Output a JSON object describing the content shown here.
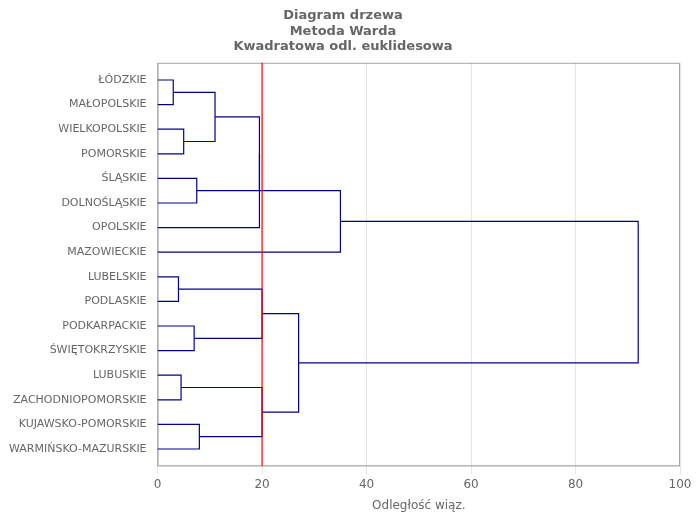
{
  "chart_data": {
    "type": "dendrogram",
    "title": "Diagram drzewa\nMetoda Warda\nKwadratowa odl. euklidesowa",
    "xlabel": "Odległość wiąz.",
    "color": "#00008B",
    "grid": "x",
    "xlim": [
      0,
      100
    ],
    "xticks": [
      0,
      20,
      40,
      60,
      80,
      100
    ],
    "ylim": [
      16.7,
      0.3
    ],
    "yticks": [
      {
        "value": 1,
        "label": "ŁÓDZKIE"
      },
      {
        "value": 2,
        "label": "MAŁOPOLSKIE"
      },
      {
        "value": 3,
        "label": "WIELKOPOLSKIE"
      },
      {
        "value": 4,
        "label": "POMORSKIE"
      },
      {
        "value": 5,
        "label": "ŚLĄSKIE"
      },
      {
        "value": 6,
        "label": "DOLNOŚLĄSKIE"
      },
      {
        "value": 7,
        "label": "OPOLSKIE"
      },
      {
        "value": 8,
        "label": "MAZOWIECKIE"
      },
      {
        "value": 9,
        "label": "LUBELSKIE"
      },
      {
        "value": 10,
        "label": "PODLASKIE"
      },
      {
        "value": 11,
        "label": "PODKARPACKIE"
      },
      {
        "value": 12,
        "label": "ŚWIĘTOKRZYSKIE"
      },
      {
        "value": 13,
        "label": "LUBUSKIE"
      },
      {
        "value": 14,
        "label": "ZACHODNIOPOMORSKIE"
      },
      {
        "value": 15,
        "label": "KUJAWSKO-POMORSKIE"
      },
      {
        "value": 16,
        "label": "WARMIŃSKO-MAZURSKIE"
      }
    ],
    "merges": [
      {
        "y1": 1,
        "y2": 2,
        "x1": 0,
        "x2": 0,
        "xj": 3.0
      },
      {
        "y1": 3,
        "y2": 4,
        "x1": 0,
        "x2": 0,
        "xj": 5.0
      },
      {
        "y1": 1.5,
        "y2": 3.5,
        "x1": 3.0,
        "x2": 5.0,
        "xj": 11.0
      },
      {
        "y1": 5,
        "y2": 6,
        "x1": 0,
        "x2": 0,
        "xj": 7.5
      },
      {
        "y1": 2.5,
        "y2": 5.5,
        "x1": 11.0,
        "x2": 7.5,
        "xj": 19.5
      },
      {
        "y1": 4.0,
        "y2": 7,
        "x1": 19.5,
        "x2": 0,
        "xj": 19.5
      },
      {
        "y1": 5.5,
        "y2": 8,
        "x1": 19.5,
        "x2": 0,
        "xj": 35.0
      },
      {
        "y1": 9,
        "y2": 10,
        "x1": 0,
        "x2": 0,
        "xj": 4.0
      },
      {
        "y1": 11,
        "y2": 12,
        "x1": 0,
        "x2": 0,
        "xj": 7.0
      },
      {
        "y1": 9.5,
        "y2": 11.5,
        "x1": 4.0,
        "x2": 7.0,
        "xj": 20.0
      },
      {
        "y1": 13,
        "y2": 14,
        "x1": 0,
        "x2": 0,
        "xj": 4.5
      },
      {
        "y1": 15,
        "y2": 16,
        "x1": 0,
        "x2": 0,
        "xj": 8.0
      },
      {
        "y1": 13.5,
        "y2": 15.5,
        "x1": 4.5,
        "x2": 8.0,
        "xj": 20.0
      },
      {
        "y1": 10.5,
        "y2": 14.5,
        "x1": 20.0,
        "x2": 20.0,
        "xj": 27.0
      },
      {
        "y1": 6.75,
        "y2": 12.5,
        "x1": 35.0,
        "x2": 27.0,
        "xj": 92.0
      }
    ],
    "reference_line": {
      "x": 20,
      "color": "red"
    }
  }
}
